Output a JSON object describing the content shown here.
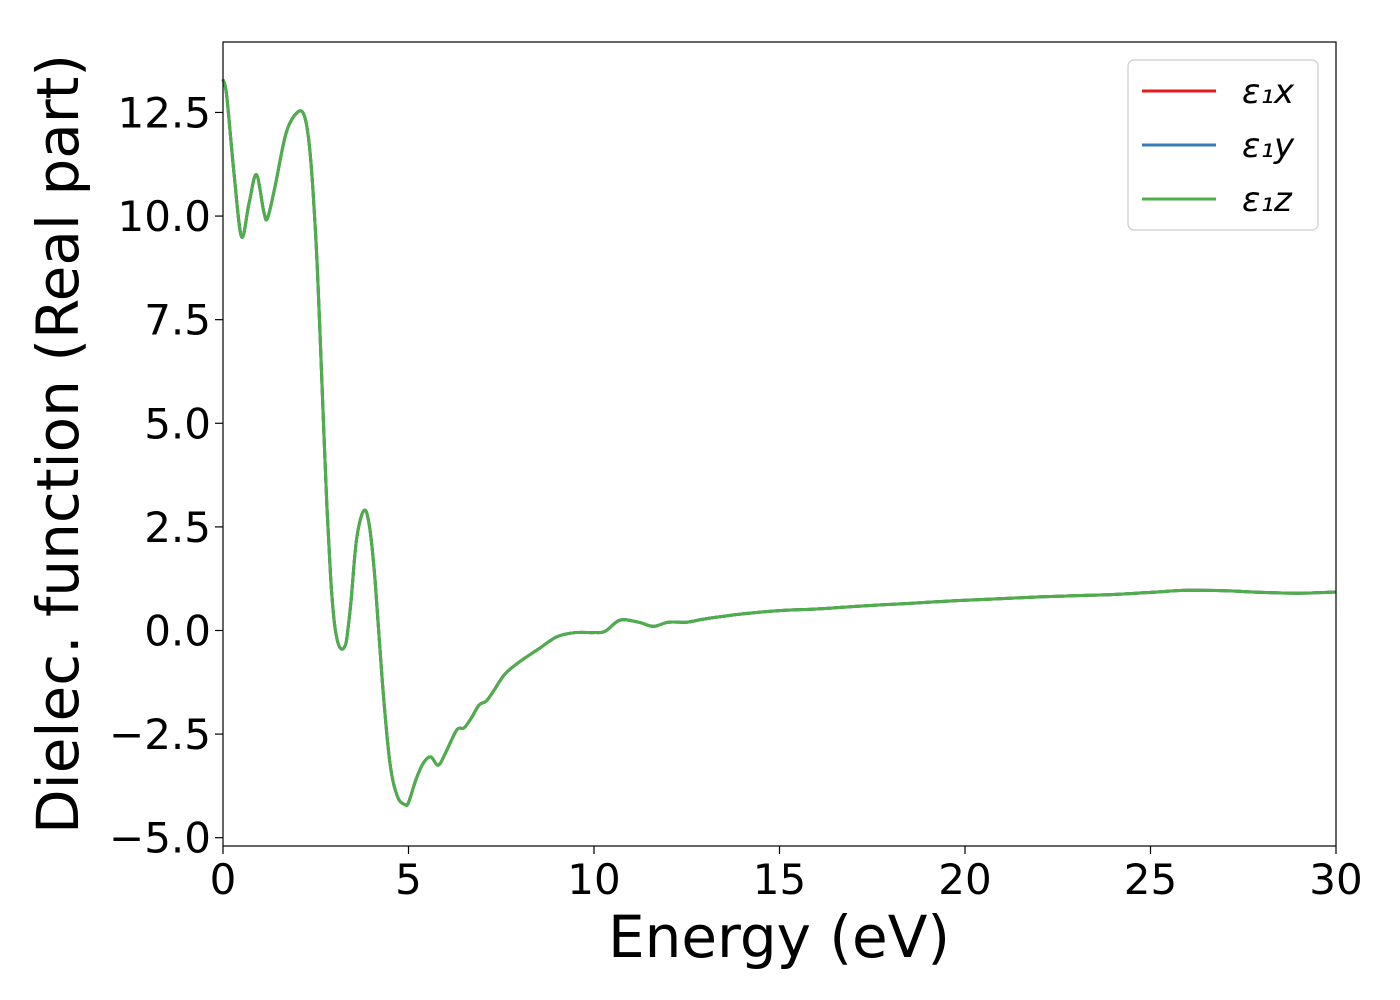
{
  "chart_data": {
    "type": "line",
    "xlabel": "Energy (eV)",
    "ylabel": "Dielec. function (Real part)",
    "xlim": [
      0,
      30
    ],
    "ylim": [
      -5.2,
      14.2
    ],
    "xticks": [
      0,
      5,
      10,
      15,
      20,
      25,
      30
    ],
    "xtick_labels": [
      "0",
      "5",
      "10",
      "15",
      "20",
      "25",
      "30"
    ],
    "yticks": [
      -5.0,
      -2.5,
      0.0,
      2.5,
      5.0,
      7.5,
      10.0,
      12.5
    ],
    "ytick_labels": [
      "−5.0",
      "−2.5",
      "0.0",
      "2.5",
      "5.0",
      "7.5",
      "10.0",
      "12.5"
    ],
    "legend_position": "top-right",
    "grid": false,
    "series": [
      {
        "name": "ε₁x",
        "color": "#e41a1c",
        "x": [
          0,
          0.1,
          0.3,
          0.5,
          0.7,
          0.9,
          1.1,
          1.2,
          1.4,
          1.7,
          2.0,
          2.2,
          2.35,
          2.5,
          2.6,
          2.7,
          2.8,
          2.9,
          3.0,
          3.1,
          3.2,
          3.3,
          3.35,
          3.45,
          3.6,
          3.8,
          3.95,
          4.1,
          4.3,
          4.5,
          4.7,
          4.9,
          5.0,
          5.2,
          5.4,
          5.6,
          5.8,
          6.0,
          6.3,
          6.5,
          6.7,
          6.9,
          7.1,
          7.3,
          7.6,
          8.0,
          8.5,
          9.0,
          9.5,
          10.0,
          10.3,
          10.7,
          11.2,
          11.6,
          12.0,
          12.5,
          13.0,
          14.0,
          15.0,
          16.0,
          17.0,
          18.0,
          19.0,
          20.0,
          21.0,
          22.0,
          23.0,
          24.0,
          25.0,
          26.0,
          27.0,
          28.0,
          29.0,
          30.0
        ],
        "y": [
          13.3,
          12.9,
          11.0,
          9.5,
          10.3,
          11.0,
          10.1,
          9.95,
          10.7,
          12.0,
          12.5,
          12.4,
          11.5,
          9.5,
          7.5,
          5.2,
          3.0,
          1.3,
          0.2,
          -0.3,
          -0.45,
          -0.35,
          -0.1,
          0.7,
          2.2,
          2.9,
          2.5,
          1.2,
          -1.3,
          -3.2,
          -4.0,
          -4.2,
          -4.15,
          -3.6,
          -3.2,
          -3.05,
          -3.25,
          -2.95,
          -2.4,
          -2.35,
          -2.1,
          -1.8,
          -1.7,
          -1.45,
          -1.05,
          -0.75,
          -0.45,
          -0.15,
          -0.05,
          -0.05,
          -0.02,
          0.25,
          0.2,
          0.1,
          0.2,
          0.2,
          0.28,
          0.4,
          0.48,
          0.52,
          0.58,
          0.63,
          0.68,
          0.73,
          0.77,
          0.81,
          0.84,
          0.87,
          0.92,
          0.97,
          0.96,
          0.92,
          0.9,
          0.93
        ]
      },
      {
        "name": "ε₁y",
        "color": "#377eb8",
        "x": [
          0,
          0.1,
          0.3,
          0.5,
          0.7,
          0.9,
          1.1,
          1.2,
          1.4,
          1.7,
          2.0,
          2.2,
          2.35,
          2.5,
          2.6,
          2.7,
          2.8,
          2.9,
          3.0,
          3.1,
          3.2,
          3.3,
          3.35,
          3.45,
          3.6,
          3.8,
          3.95,
          4.1,
          4.3,
          4.5,
          4.7,
          4.9,
          5.0,
          5.2,
          5.4,
          5.6,
          5.8,
          6.0,
          6.3,
          6.5,
          6.7,
          6.9,
          7.1,
          7.3,
          7.6,
          8.0,
          8.5,
          9.0,
          9.5,
          10.0,
          10.3,
          10.7,
          11.2,
          11.6,
          12.0,
          12.5,
          13.0,
          14.0,
          15.0,
          16.0,
          17.0,
          18.0,
          19.0,
          20.0,
          21.0,
          22.0,
          23.0,
          24.0,
          25.0,
          26.0,
          27.0,
          28.0,
          29.0,
          30.0
        ],
        "y": [
          13.3,
          12.9,
          11.0,
          9.5,
          10.3,
          11.0,
          10.1,
          9.95,
          10.7,
          12.0,
          12.5,
          12.4,
          11.5,
          9.5,
          7.5,
          5.2,
          3.0,
          1.3,
          0.2,
          -0.3,
          -0.45,
          -0.35,
          -0.1,
          0.7,
          2.2,
          2.9,
          2.5,
          1.2,
          -1.3,
          -3.2,
          -4.0,
          -4.2,
          -4.15,
          -3.6,
          -3.2,
          -3.05,
          -3.25,
          -2.95,
          -2.4,
          -2.35,
          -2.1,
          -1.8,
          -1.7,
          -1.45,
          -1.05,
          -0.75,
          -0.45,
          -0.15,
          -0.05,
          -0.05,
          -0.02,
          0.25,
          0.2,
          0.1,
          0.2,
          0.2,
          0.28,
          0.4,
          0.48,
          0.52,
          0.58,
          0.63,
          0.68,
          0.73,
          0.77,
          0.81,
          0.84,
          0.87,
          0.92,
          0.97,
          0.96,
          0.92,
          0.9,
          0.93
        ]
      },
      {
        "name": "ε₁z",
        "color": "#4daf4a",
        "x": [
          0,
          0.1,
          0.3,
          0.5,
          0.7,
          0.9,
          1.1,
          1.2,
          1.4,
          1.7,
          2.0,
          2.2,
          2.35,
          2.5,
          2.6,
          2.7,
          2.8,
          2.9,
          3.0,
          3.1,
          3.2,
          3.3,
          3.35,
          3.45,
          3.6,
          3.8,
          3.95,
          4.1,
          4.3,
          4.5,
          4.7,
          4.9,
          5.0,
          5.2,
          5.4,
          5.6,
          5.8,
          6.0,
          6.3,
          6.5,
          6.7,
          6.9,
          7.1,
          7.3,
          7.6,
          8.0,
          8.5,
          9.0,
          9.5,
          10.0,
          10.3,
          10.7,
          11.2,
          11.6,
          12.0,
          12.5,
          13.0,
          14.0,
          15.0,
          16.0,
          17.0,
          18.0,
          19.0,
          20.0,
          21.0,
          22.0,
          23.0,
          24.0,
          25.0,
          26.0,
          27.0,
          28.0,
          29.0,
          30.0
        ],
        "y": [
          13.3,
          12.9,
          11.0,
          9.5,
          10.3,
          11.0,
          10.1,
          9.95,
          10.7,
          12.0,
          12.5,
          12.4,
          11.5,
          9.5,
          7.5,
          5.2,
          3.0,
          1.3,
          0.2,
          -0.3,
          -0.45,
          -0.35,
          -0.1,
          0.7,
          2.2,
          2.9,
          2.5,
          1.2,
          -1.3,
          -3.2,
          -4.0,
          -4.2,
          -4.15,
          -3.6,
          -3.2,
          -3.05,
          -3.25,
          -2.95,
          -2.4,
          -2.35,
          -2.1,
          -1.8,
          -1.7,
          -1.45,
          -1.05,
          -0.75,
          -0.45,
          -0.15,
          -0.05,
          -0.05,
          -0.02,
          0.25,
          0.2,
          0.1,
          0.2,
          0.2,
          0.28,
          0.4,
          0.48,
          0.52,
          0.58,
          0.63,
          0.68,
          0.73,
          0.77,
          0.81,
          0.84,
          0.87,
          0.92,
          0.97,
          0.96,
          0.92,
          0.9,
          0.93
        ]
      }
    ]
  }
}
